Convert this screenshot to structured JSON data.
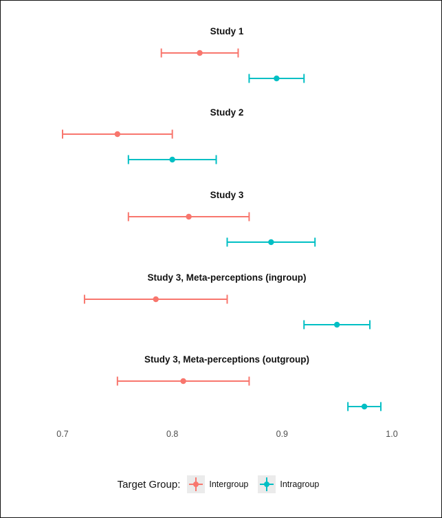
{
  "chart_data": {
    "type": "errorbar",
    "xlim": [
      0.68,
      1.0
    ],
    "x_ticks": [
      "0.7",
      "0.8",
      "0.9",
      "1.0"
    ],
    "grid": false,
    "legend_position": "bottom",
    "legend": {
      "title": "Target Group:",
      "entries": [
        "Intergroup",
        "Intragroup"
      ]
    },
    "colors": {
      "Intergroup": "#F8766D",
      "Intragroup": "#00BFC4"
    },
    "panels": [
      {
        "title": "Study 1",
        "points": [
          {
            "group": "Intergroup",
            "estimate": 0.825,
            "lower": 0.79,
            "upper": 0.86
          },
          {
            "group": "Intragroup",
            "estimate": 0.895,
            "lower": 0.87,
            "upper": 0.92
          }
        ]
      },
      {
        "title": "Study 2",
        "points": [
          {
            "group": "Intergroup",
            "estimate": 0.75,
            "lower": 0.7,
            "upper": 0.8
          },
          {
            "group": "Intragroup",
            "estimate": 0.8,
            "lower": 0.76,
            "upper": 0.84
          }
        ]
      },
      {
        "title": "Study 3",
        "points": [
          {
            "group": "Intergroup",
            "estimate": 0.815,
            "lower": 0.76,
            "upper": 0.87
          },
          {
            "group": "Intragroup",
            "estimate": 0.89,
            "lower": 0.85,
            "upper": 0.93
          }
        ]
      },
      {
        "title": "Study 3, Meta-perceptions (ingroup)",
        "points": [
          {
            "group": "Intergroup",
            "estimate": 0.785,
            "lower": 0.72,
            "upper": 0.85
          },
          {
            "group": "Intragroup",
            "estimate": 0.95,
            "lower": 0.92,
            "upper": 0.98
          }
        ]
      },
      {
        "title": "Study 3, Meta-perceptions (outgroup)",
        "points": [
          {
            "group": "Intergroup",
            "estimate": 0.81,
            "lower": 0.75,
            "upper": 0.87
          },
          {
            "group": "Intragroup",
            "estimate": 0.975,
            "lower": 0.96,
            "upper": 0.99
          }
        ]
      }
    ]
  }
}
